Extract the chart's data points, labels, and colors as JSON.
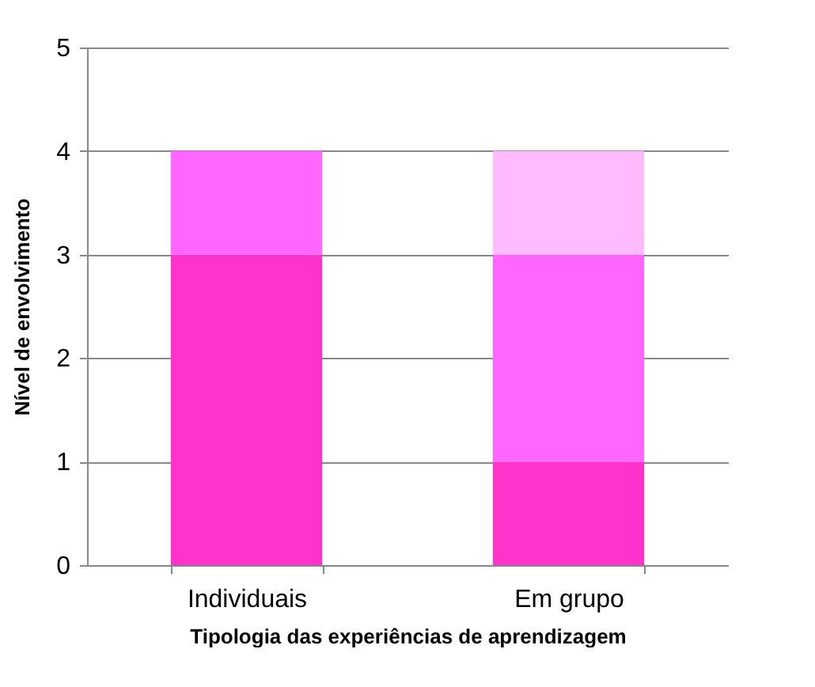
{
  "chart_data": {
    "type": "bar",
    "stacked": true,
    "xlabel": "Tipologia das experiências de aprendizagem",
    "ylabel": "Nível de envolvimento",
    "categories": [
      "Individuais",
      "Em grupo"
    ],
    "series": [
      {
        "color": "#ff33cc",
        "values": [
          3,
          1
        ]
      },
      {
        "color": "#ff66ff",
        "values": [
          1,
          2
        ]
      },
      {
        "color": "#ffbbff",
        "values": [
          0,
          1
        ]
      }
    ],
    "ylim": [
      0,
      5
    ],
    "yticks": [
      0,
      1,
      2,
      3,
      4,
      5
    ],
    "grid": "y"
  }
}
